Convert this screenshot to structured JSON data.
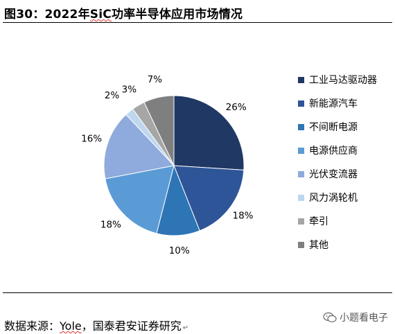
{
  "header": {
    "title_prefix": "图30：2022年",
    "title_sic": "SiC",
    "title_suffix": "功率半导体应用市场情况"
  },
  "chart_data": {
    "type": "pie",
    "title": "图30：2022年SiC功率半导体应用市场情况",
    "legend_position": "right",
    "slices": [
      {
        "label": "工业马达驱动器",
        "value": 26,
        "text": "26%",
        "color": "#1f3864"
      },
      {
        "label": "新能源汽车",
        "value": 18,
        "text": "18%",
        "color": "#2e5597"
      },
      {
        "label": "不间断电源",
        "value": 10,
        "text": "10%",
        "color": "#2e75b6"
      },
      {
        "label": "电源供应商",
        "value": 18,
        "text": "18%",
        "color": "#5b9bd5"
      },
      {
        "label": "光伏变流器",
        "value": 16,
        "text": "16%",
        "color": "#8faadc"
      },
      {
        "label": "风力涡轮机",
        "value": 2,
        "text": "2%",
        "color": "#bdd7ee"
      },
      {
        "label": "牵引",
        "value": 3,
        "text": "3%",
        "color": "#a6a6a6"
      },
      {
        "label": "其他",
        "value": 7,
        "text": "7%",
        "color": "#7f7f7f"
      }
    ]
  },
  "footer": {
    "source_prefix": "数据来源：",
    "source_yole": "Yole",
    "source_suffix": "，国泰君安证券研究",
    "return_mark": "↵",
    "watermark": "小题看电子"
  }
}
